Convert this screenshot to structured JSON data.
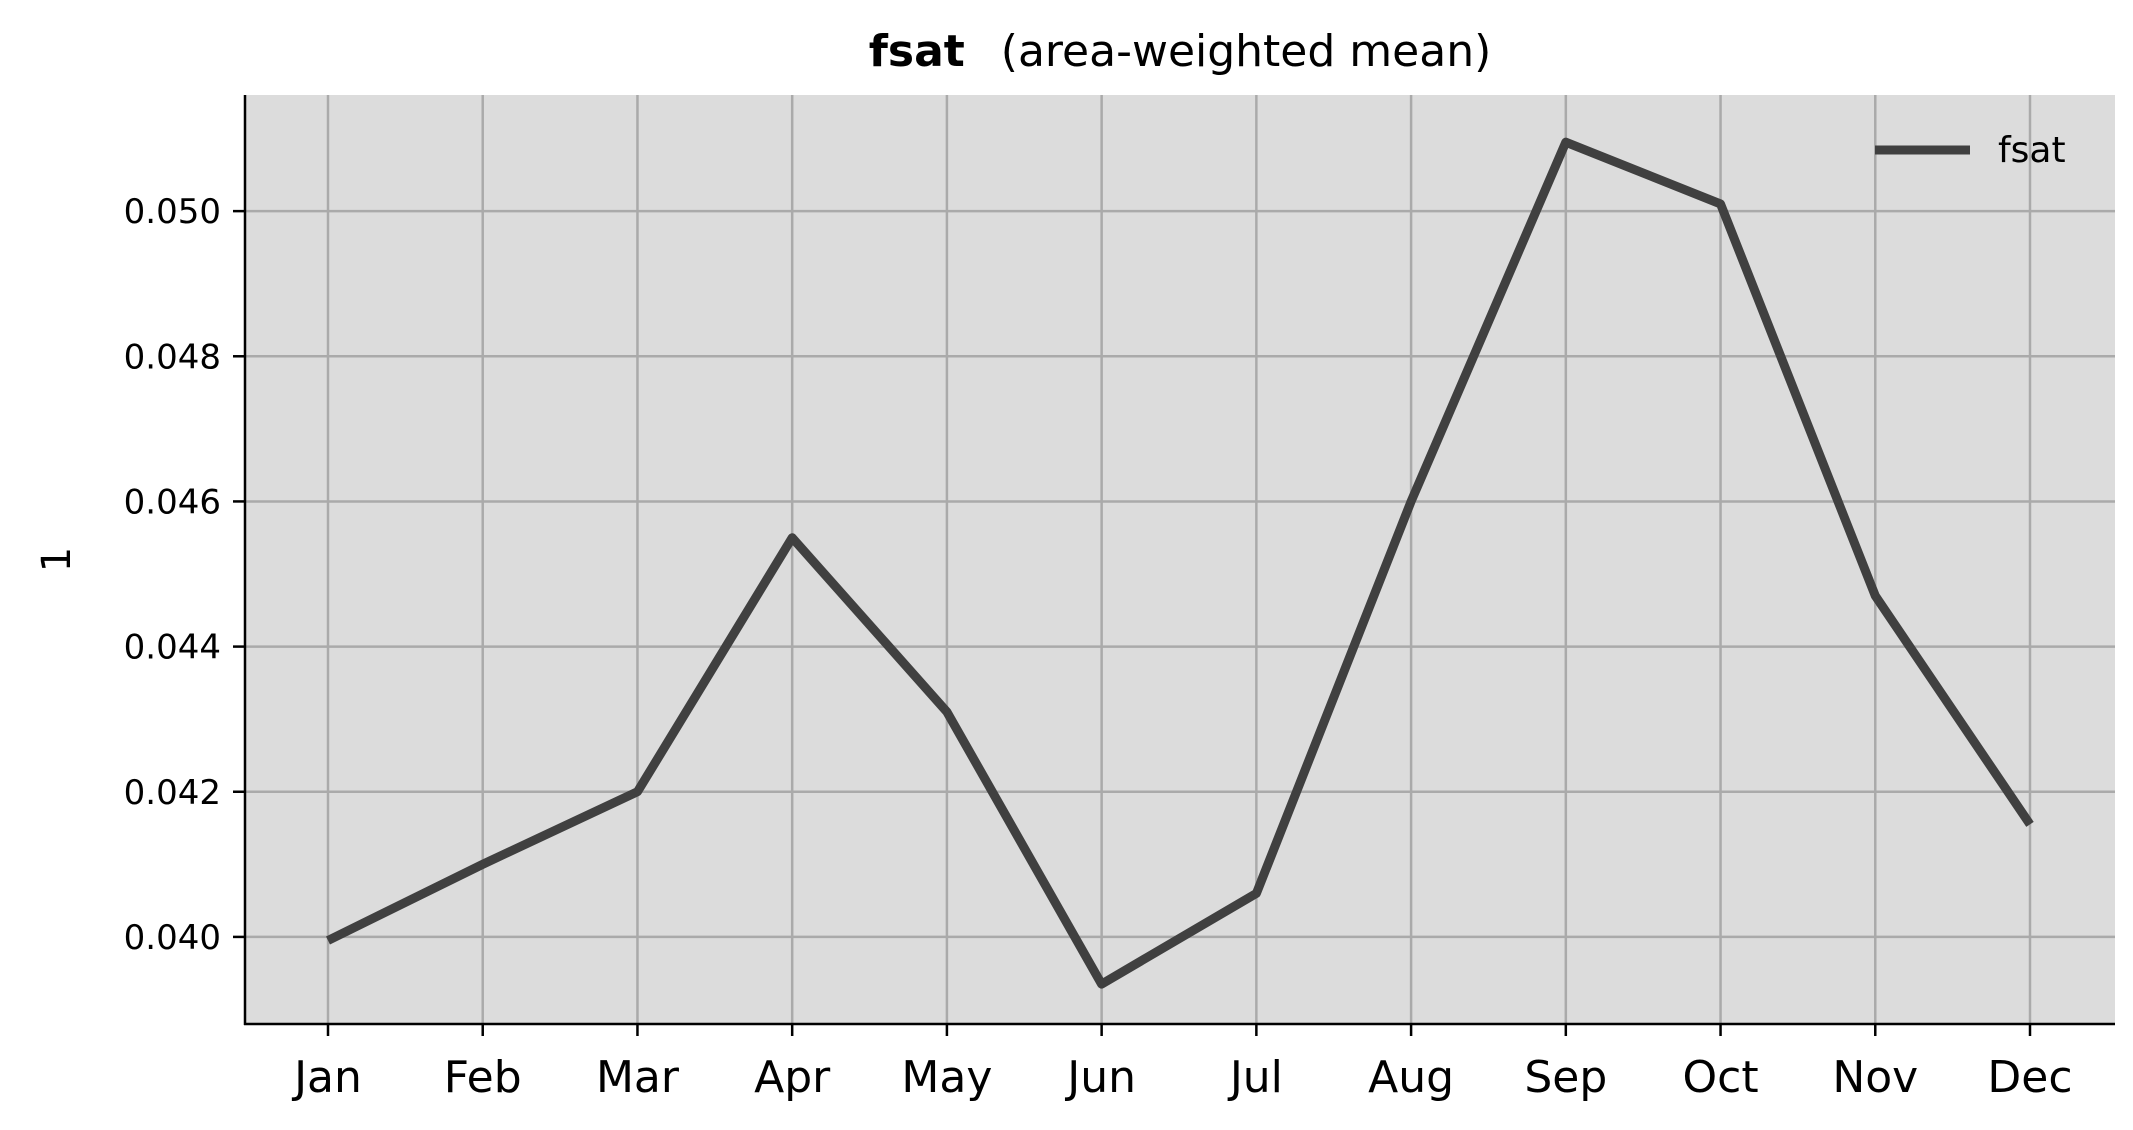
{
  "chart_data": {
    "type": "line",
    "title": "fsat",
    "subtitle": "(area-weighted mean)",
    "xlabel": "",
    "ylabel": "1",
    "categories": [
      "Jan",
      "Feb",
      "Mar",
      "Apr",
      "May",
      "Jun",
      "Jul",
      "Aug",
      "Sep",
      "Oct",
      "Nov",
      "Dec"
    ],
    "series": [
      {
        "name": "fsat",
        "values": [
          0.03995,
          0.041,
          0.042,
          0.0455,
          0.0431,
          0.03935,
          0.0406,
          0.046,
          0.05095,
          0.0501,
          0.0447,
          0.04155
        ],
        "color": "#404040"
      }
    ],
    "ylim": [
      0.0388,
      0.0516
    ],
    "yticks": [
      0.04,
      0.042,
      0.044,
      0.046,
      0.048,
      0.05
    ],
    "ytick_labels": [
      "0.040",
      "0.042",
      "0.044",
      "0.046",
      "0.048",
      "0.050"
    ],
    "grid": true,
    "legend_position": "top-right",
    "colors": {
      "plot_background": "#dcdcdc",
      "grid": "#aaaaaa",
      "line": "#404040",
      "axis": "#000000"
    }
  }
}
